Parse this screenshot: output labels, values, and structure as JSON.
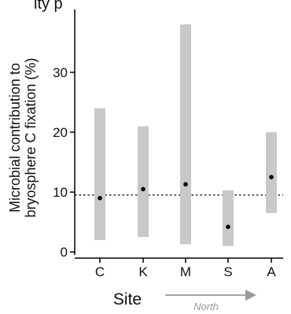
{
  "chart_data": {
    "type": "bar",
    "subtype": "range-with-point",
    "title_fragment": "ity p",
    "ylabel_lines": [
      "Microbial contribution to",
      "bryosphere C fixation (%)"
    ],
    "xlabel": "Site",
    "direction_label": "North",
    "categories": [
      "C",
      "K",
      "M",
      "S",
      "A"
    ],
    "ranges": [
      {
        "site": "C",
        "low": 2.0,
        "high": 24.0
      },
      {
        "site": "K",
        "low": 2.5,
        "high": 21.0
      },
      {
        "site": "M",
        "low": 1.3,
        "high": 38.0
      },
      {
        "site": "S",
        "low": 1.0,
        "high": 10.3
      },
      {
        "site": "A",
        "low": 6.5,
        "high": 20.0
      }
    ],
    "points": [
      {
        "site": "C",
        "value": 9.0
      },
      {
        "site": "K",
        "value": 10.5
      },
      {
        "site": "M",
        "value": 11.3
      },
      {
        "site": "S",
        "value": 4.2
      },
      {
        "site": "A",
        "value": 12.5
      }
    ],
    "reference_line": 9.5,
    "yticks": [
      0,
      10,
      20,
      30
    ],
    "ylim": [
      -0.5,
      40.5
    ],
    "grid": false,
    "legend": "none"
  },
  "colors": {
    "range_bar": "#c8c8c8",
    "point": "#000000",
    "axis": "#000000",
    "reference_line": "#000000",
    "arrow": "#9a9a9a",
    "direction_label": "#9a9a9a"
  }
}
